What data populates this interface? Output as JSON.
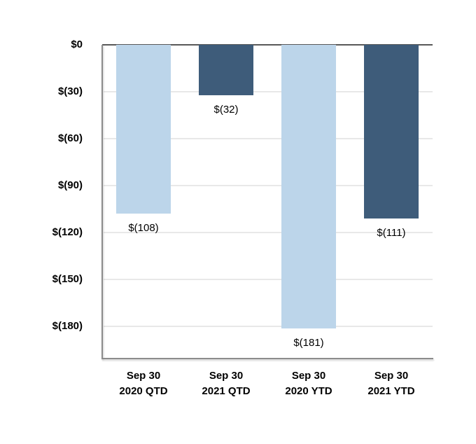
{
  "chart_data": {
    "type": "bar",
    "title": "",
    "xlabel": "",
    "ylabel": "",
    "legend": "none",
    "grid": "horizontal",
    "categories": [
      "Sep 30\n2020 QTD",
      "Sep 30\n2021 QTD",
      "Sep 30\n2020 YTD",
      "Sep 30\n2021 YTD"
    ],
    "values": [
      -108,
      -32,
      -181,
      -111
    ],
    "data_labels": [
      "$(108)",
      "$(32)",
      "$(181)",
      "$(111)"
    ],
    "bar_colors": [
      "#BCD5EA",
      "#3E5C7A",
      "#BCD5EA",
      "#3E5C7A"
    ],
    "y_ticks": [
      {
        "value": 0,
        "label": "$0"
      },
      {
        "value": -30,
        "label": "$(30)"
      },
      {
        "value": -60,
        "label": "$(60)"
      },
      {
        "value": -90,
        "label": "$(90)"
      },
      {
        "value": -120,
        "label": "$(120)"
      },
      {
        "value": -150,
        "label": "$(150)"
      },
      {
        "value": -180,
        "label": "$(180)"
      }
    ],
    "ylim": [
      0,
      -200
    ],
    "colors": {
      "light_blue": "#BCD5EA",
      "dark_blue": "#3E5C7A",
      "gridline": "#E8E8E8",
      "zero_line": "#595959",
      "axis_line": "#8C8C8C",
      "text": "#000000",
      "background": "#FFFFFF"
    }
  }
}
